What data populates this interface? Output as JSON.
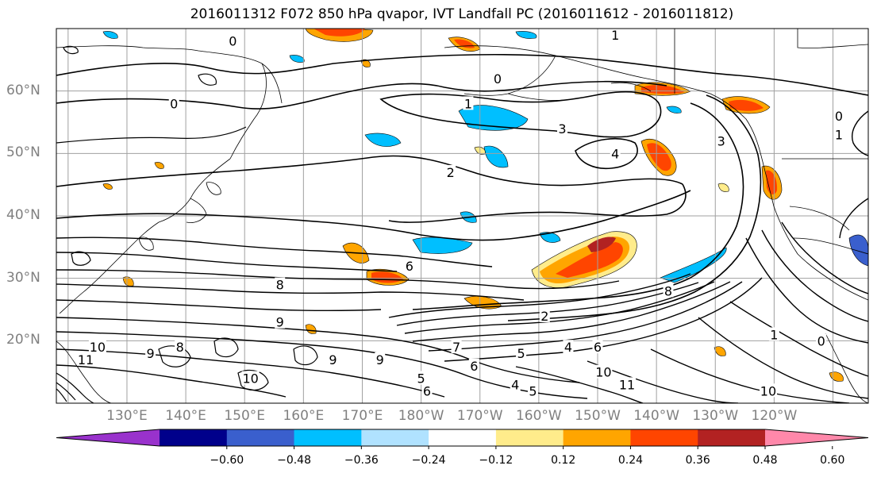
{
  "title": "2016011312 F072 850 hPa qvapor, IVT Landfall PC (2016011612 - 2016011812)",
  "lat_labels": [
    "60°N",
    "50°N",
    "40°N",
    "30°N",
    "20°N"
  ],
  "lon_labels": [
    "130°E",
    "140°E",
    "150°E",
    "160°E",
    "170°E",
    "180°W",
    "170°W",
    "160°W",
    "150°W",
    "140°W",
    "130°W",
    "120°W"
  ],
  "colorbar": {
    "colors": [
      "#9932cc",
      "#00008b",
      "#3a5fcd",
      "#00bfff",
      "#b0e2ff",
      "#ffffff",
      "#ffec8b",
      "#ffa500",
      "#ff4500",
      "#b22222",
      "#ff88aa"
    ],
    "ticks": [
      "−0.60",
      "−0.48",
      "−0.36",
      "−0.24",
      "−0.12",
      "0.12",
      "0.24",
      "0.36",
      "0.48",
      "0.60"
    ]
  },
  "contour_labels": [
    {
      "text": "0",
      "lon": 148,
      "lat": 68
    },
    {
      "text": "0",
      "lon": 138,
      "lat": 58
    },
    {
      "text": "0",
      "lon": 193,
      "lat": 62
    },
    {
      "text": "1",
      "lon": 188,
      "lat": 58
    },
    {
      "text": "1",
      "lon": 213,
      "lat": 69
    },
    {
      "text": "3",
      "lon": 204,
      "lat": 54
    },
    {
      "text": "4",
      "lon": 213,
      "lat": 50
    },
    {
      "text": "3",
      "lon": 231,
      "lat": 52
    },
    {
      "text": "2",
      "lon": 185,
      "lat": 47
    },
    {
      "text": "1",
      "lon": 251,
      "lat": 53
    },
    {
      "text": "0",
      "lon": 251,
      "lat": 56
    },
    {
      "text": "6",
      "lon": 178,
      "lat": 32
    },
    {
      "text": "8",
      "lon": 156,
      "lat": 29
    },
    {
      "text": "8",
      "lon": 222,
      "lat": 28
    },
    {
      "text": "9",
      "lon": 156,
      "lat": 23
    },
    {
      "text": "2",
      "lon": 201,
      "lat": 24
    },
    {
      "text": "1",
      "lon": 240,
      "lat": 21
    },
    {
      "text": "0",
      "lon": 248,
      "lat": 20
    },
    {
      "text": "10",
      "lon": 125,
      "lat": 19
    },
    {
      "text": "11",
      "lon": 123,
      "lat": 17
    },
    {
      "text": "9",
      "lon": 134,
      "lat": 18
    },
    {
      "text": "8",
      "lon": 139,
      "lat": 19
    },
    {
      "text": "10",
      "lon": 151,
      "lat": 14
    },
    {
      "text": "9",
      "lon": 165,
      "lat": 17
    },
    {
      "text": "9",
      "lon": 173,
      "lat": 17
    },
    {
      "text": "7",
      "lon": 186,
      "lat": 19
    },
    {
      "text": "6",
      "lon": 189,
      "lat": 16
    },
    {
      "text": "5",
      "lon": 197,
      "lat": 18
    },
    {
      "text": "4",
      "lon": 205,
      "lat": 19
    },
    {
      "text": "6",
      "lon": 210,
      "lat": 19
    },
    {
      "text": "10",
      "lon": 211,
      "lat": 15
    },
    {
      "text": "11",
      "lon": 215,
      "lat": 13
    },
    {
      "text": "10",
      "lon": 239,
      "lat": 12
    },
    {
      "text": "5",
      "lon": 180,
      "lat": 14
    },
    {
      "text": "4",
      "lon": 196,
      "lat": 13
    },
    {
      "text": "5",
      "lon": 199,
      "lat": 12
    },
    {
      "text": "6",
      "lon": 181,
      "lat": 12
    }
  ]
}
